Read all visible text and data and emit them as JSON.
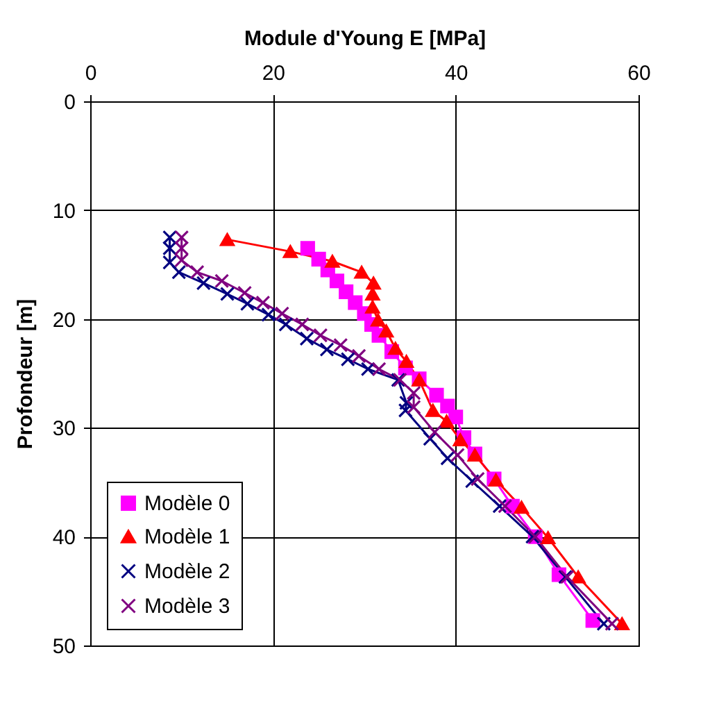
{
  "chart_data": {
    "type": "line",
    "xlabel": "Module d'Young E [MPa]",
    "ylabel": "Profondeur [m]",
    "xlim": [
      0,
      60
    ],
    "xticks": [
      0,
      20,
      40,
      60
    ],
    "ylim": [
      50,
      0
    ],
    "yticks": [
      0,
      10,
      20,
      30,
      40,
      50
    ],
    "grid": true,
    "legend": "bottom left",
    "series": [
      {
        "name": "Modèle 0",
        "color": "#ff00ff",
        "marker": "square",
        "x": [
          23.8,
          25,
          26,
          27,
          28,
          29,
          30,
          30.8,
          31.6,
          33,
          34.5,
          36,
          37.9,
          39.1,
          40,
          40.9,
          42.1,
          44.2,
          46.2,
          48.7,
          51.3,
          55
        ],
        "values": [
          13.5,
          14.5,
          15.5,
          16.5,
          17.5,
          18.5,
          19.5,
          20.5,
          21.5,
          23,
          24.5,
          25.5,
          27,
          28,
          29,
          30.9,
          32.4,
          34.7,
          37.2,
          40,
          43.5,
          47.7
        ]
      },
      {
        "name": "Modèle 1",
        "color": "#ff0000",
        "marker": "triangle",
        "x": [
          15,
          21.9,
          26.5,
          29.7,
          31,
          30.9,
          30.9,
          31.5,
          32.4,
          33.4,
          34.6,
          36,
          37.5,
          39,
          40.5,
          42.1,
          44.4,
          47.2,
          50.1,
          53.4,
          58.2
        ],
        "values": [
          12.7,
          13.8,
          14.7,
          15.7,
          16.7,
          17.7,
          18.9,
          20.1,
          21.1,
          22.7,
          23.9,
          25.6,
          28.4,
          29.4,
          31.1,
          32.5,
          34.8,
          37.3,
          40.1,
          43.7,
          48
        ]
      },
      {
        "name": "Modèle 2",
        "color": "#000080",
        "marker": "cross",
        "x": [
          8.7,
          8.7,
          8.7,
          9.7,
          12.4,
          15,
          17.2,
          19.5,
          21.4,
          23.7,
          25.9,
          28.2,
          30.4,
          33.7,
          34.6,
          34.5,
          37.2,
          39.1,
          41.8,
          44.8,
          48.4,
          52,
          56.2
        ],
        "values": [
          12.5,
          13.5,
          14.8,
          15.7,
          16.7,
          17.7,
          18.6,
          19.6,
          20.5,
          21.8,
          22.8,
          23.7,
          24.6,
          25.6,
          27.7,
          28.4,
          31,
          32.8,
          34.9,
          37.2,
          40,
          43.7,
          48
        ]
      },
      {
        "name": "Modèle 3",
        "color": "#800080",
        "marker": "cross",
        "x": [
          10,
          10,
          10,
          11.7,
          14.4,
          16.9,
          18.9,
          21,
          23.2,
          25.2,
          27.4,
          29.4,
          31.6,
          33.9,
          35.4,
          35.4,
          37.7,
          40.2,
          42.4,
          45.4,
          48.7,
          52.2,
          57.1
        ],
        "values": [
          12.5,
          13.5,
          14.6,
          15.7,
          16.5,
          17.6,
          18.5,
          19.5,
          20.5,
          21.5,
          22.4,
          23.4,
          24.6,
          25.6,
          26.8,
          28.1,
          30.4,
          32.5,
          34.7,
          37.2,
          40,
          43.7,
          48
        ]
      }
    ]
  }
}
